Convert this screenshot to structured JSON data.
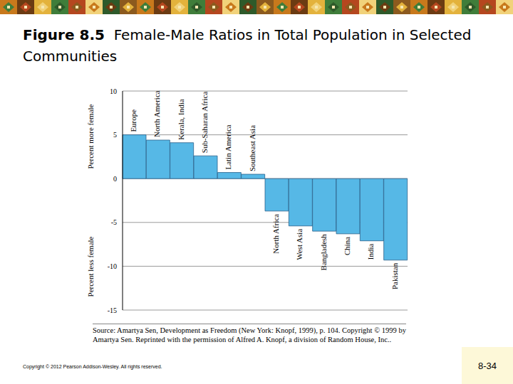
{
  "chart_data": {
    "type": "bar",
    "figure_label": "Figure 8.5",
    "title": "Female-Male Ratios in Total Population in Selected Communities",
    "categories": [
      "Europe",
      "North America",
      "Kerala, India",
      "Sub-Saharan Africa",
      "Latin America",
      "Southeast Asia",
      "North Africa",
      "West Asia",
      "Bangladesh",
      "China",
      "India",
      "Pakistan"
    ],
    "values": [
      5.0,
      4.4,
      4.1,
      2.6,
      0.7,
      0.5,
      -3.7,
      -5.4,
      -6.0,
      -6.3,
      -7.1,
      -9.3
    ],
    "color": "#56b8e6",
    "ylim": [
      -15,
      10
    ],
    "yticks": [
      10,
      5,
      0,
      -5,
      -10,
      -15
    ],
    "grid": true,
    "ylabel_positive": "Percent more female",
    "ylabel_negative": "Percent less female",
    "source": "Source: Amartya Sen, Development as Freedom (New York: Knopf, 1999), p. 104. Copyright © 1999 by Amartya Sen. Reprinted with the permission of Alfred A. Knopf, a division of Random House, Inc..",
    "copyright": "Copyright © 2012 Pearson Addison-Wesley. All rights reserved.",
    "page": "8-34"
  }
}
